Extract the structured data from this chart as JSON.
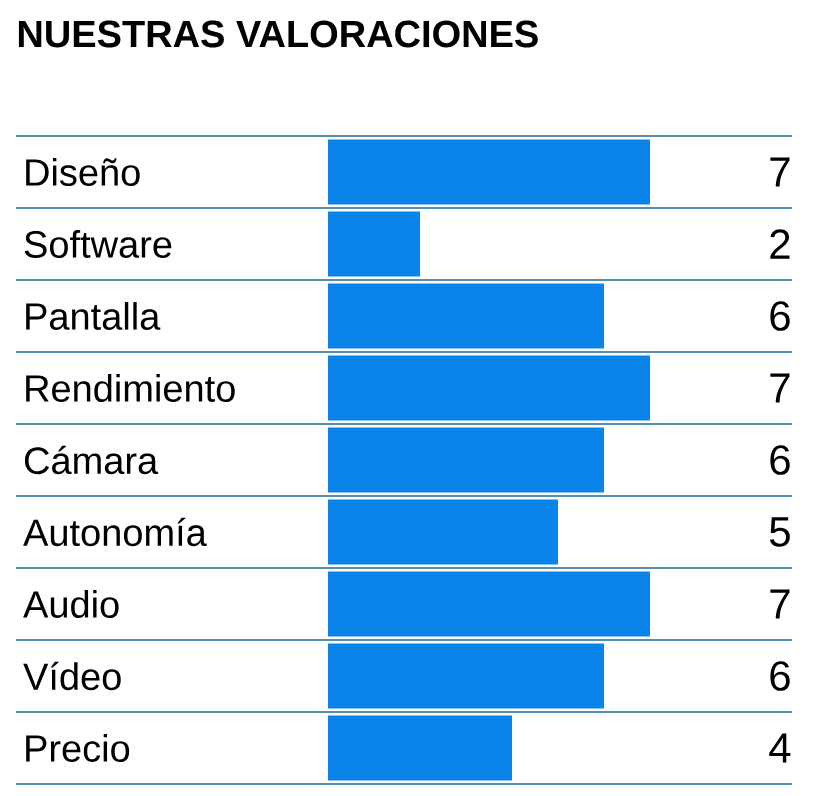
{
  "chart_data": {
    "type": "bar",
    "orientation": "horizontal",
    "title": "NUESTRAS VALORACIONES",
    "categories": [
      "Diseño",
      "Software",
      "Pantalla",
      "Rendimiento",
      "Cámara",
      "Autonomía",
      "Audio",
      "Vídeo",
      "Precio"
    ],
    "values": [
      7,
      2,
      6,
      7,
      6,
      5,
      7,
      6,
      4
    ],
    "color": "#0a84e8",
    "data_labels": true,
    "grid": "y"
  }
}
